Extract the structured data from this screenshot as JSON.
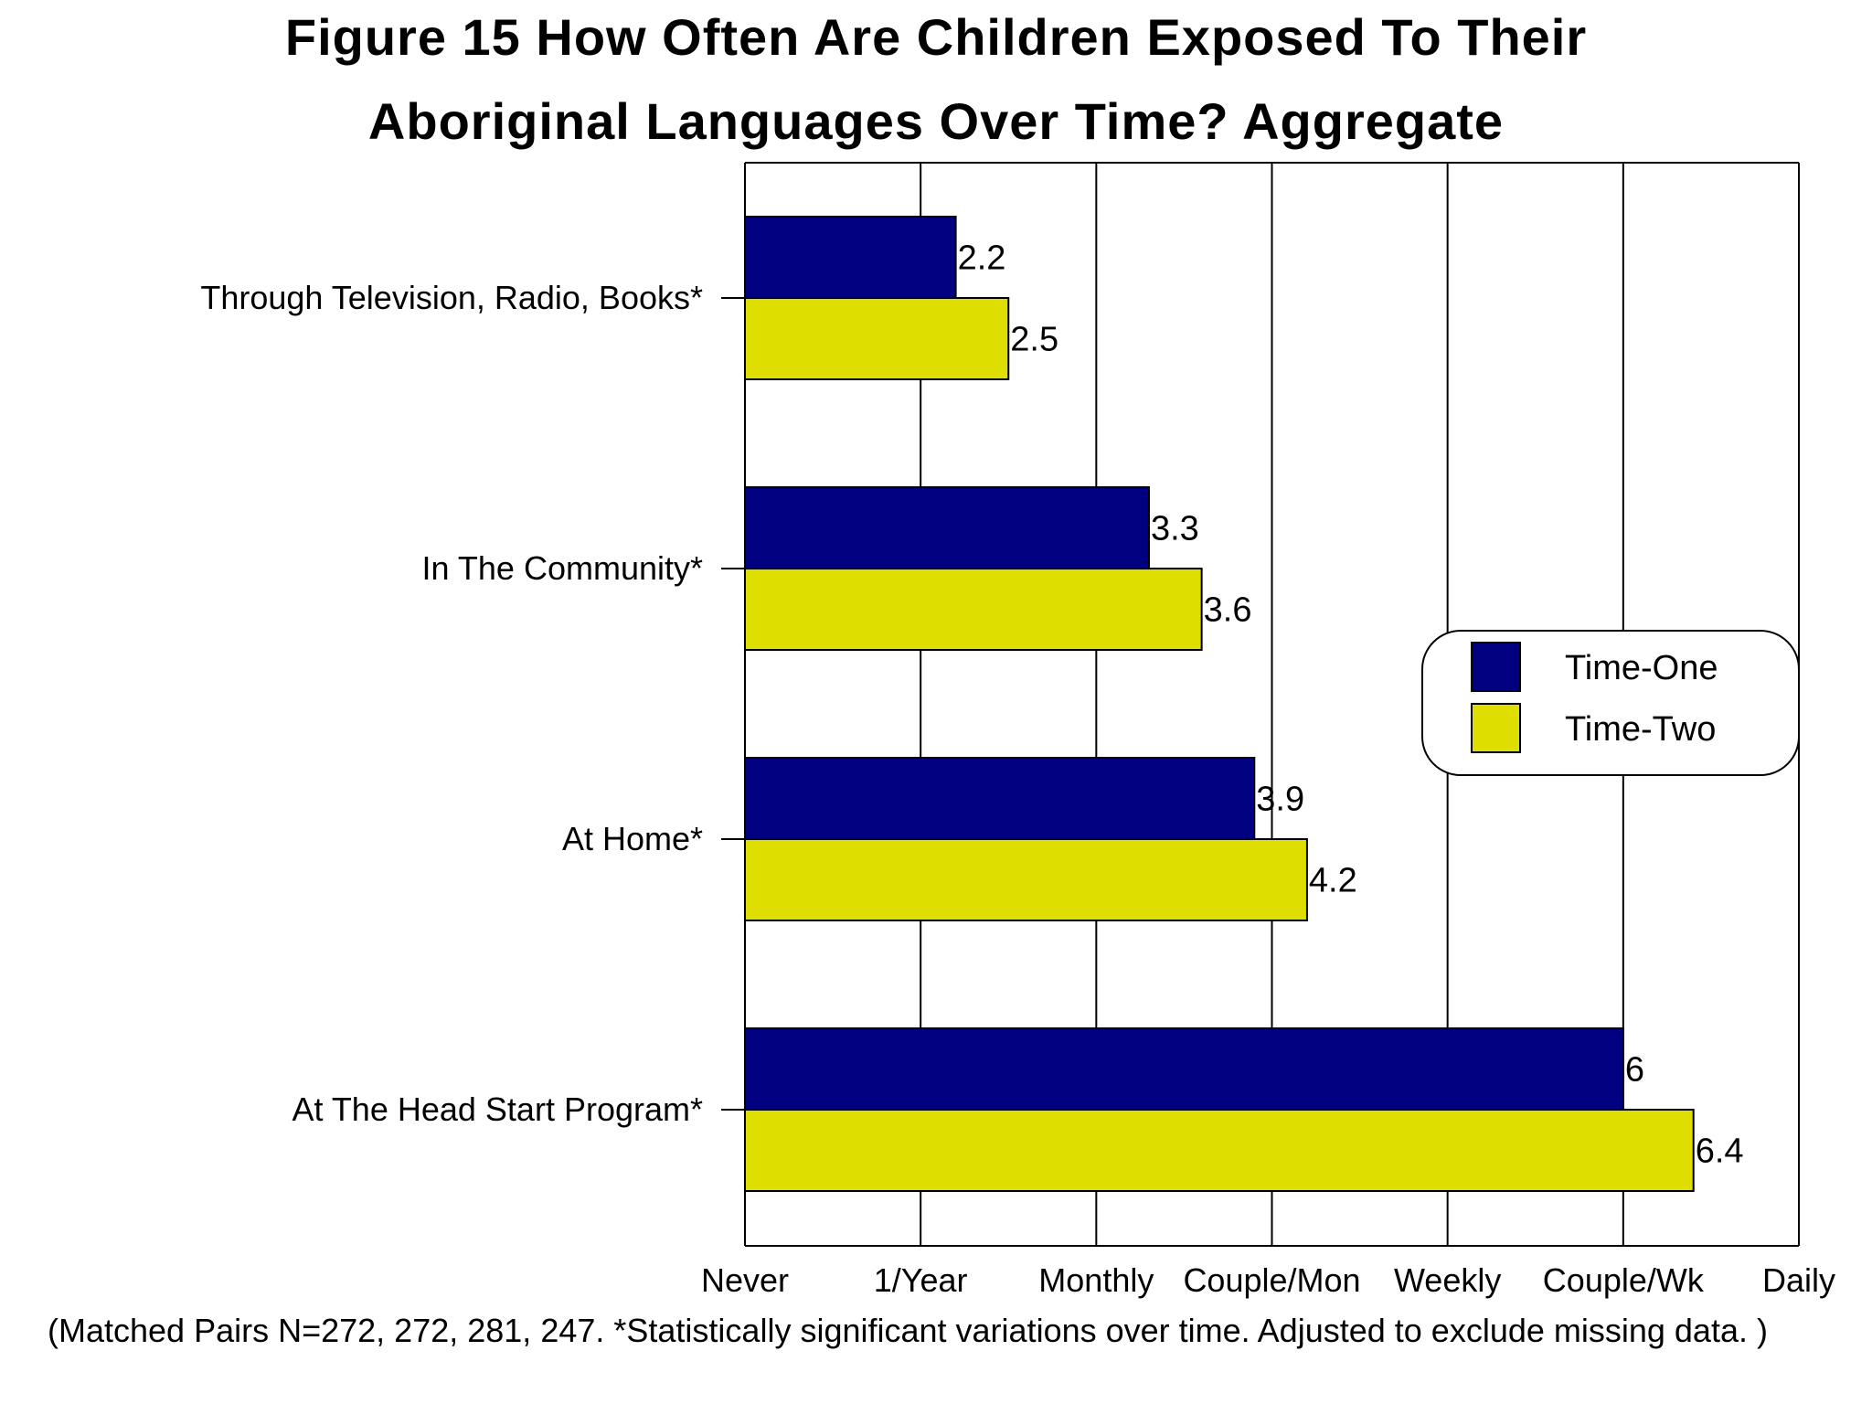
{
  "chart_data": {
    "type": "bar",
    "orientation": "horizontal",
    "title": "Figure 15  How Often Are Children Exposed To Their",
    "subtitle": "Aboriginal Languages Over Time? Aggregate",
    "categories": [
      "Through Television, Radio, Books*",
      "In The Community*",
      "At Home*",
      "At The Head Start Program*"
    ],
    "series": [
      {
        "name": "Time-One",
        "color": "#000080",
        "values": [
          2.2,
          3.3,
          3.9,
          6
        ],
        "labels": [
          "2.2",
          "3.3",
          "3.9",
          "6"
        ]
      },
      {
        "name": "Time-Two",
        "color": "#dede00",
        "values": [
          2.5,
          3.6,
          4.2,
          6.4
        ],
        "labels": [
          "2.5",
          "3.6",
          "4.2",
          "6.4"
        ]
      }
    ],
    "xlim": [
      1,
      7
    ],
    "x_ticks": [
      1,
      2,
      3,
      4,
      5,
      6,
      7
    ],
    "x_tick_labels": [
      "Never",
      "1/Year",
      "Monthly",
      "Couple/Mon",
      "Weekly",
      "Couple/Wk",
      "Daily"
    ],
    "xlabel": "",
    "ylabel": "",
    "grid": "vertical",
    "legend_position": "right"
  },
  "footnote": "(Matched Pairs N=272, 272, 281, 247. *Statistically significant variations over time. Adjusted to exclude missing data. )"
}
